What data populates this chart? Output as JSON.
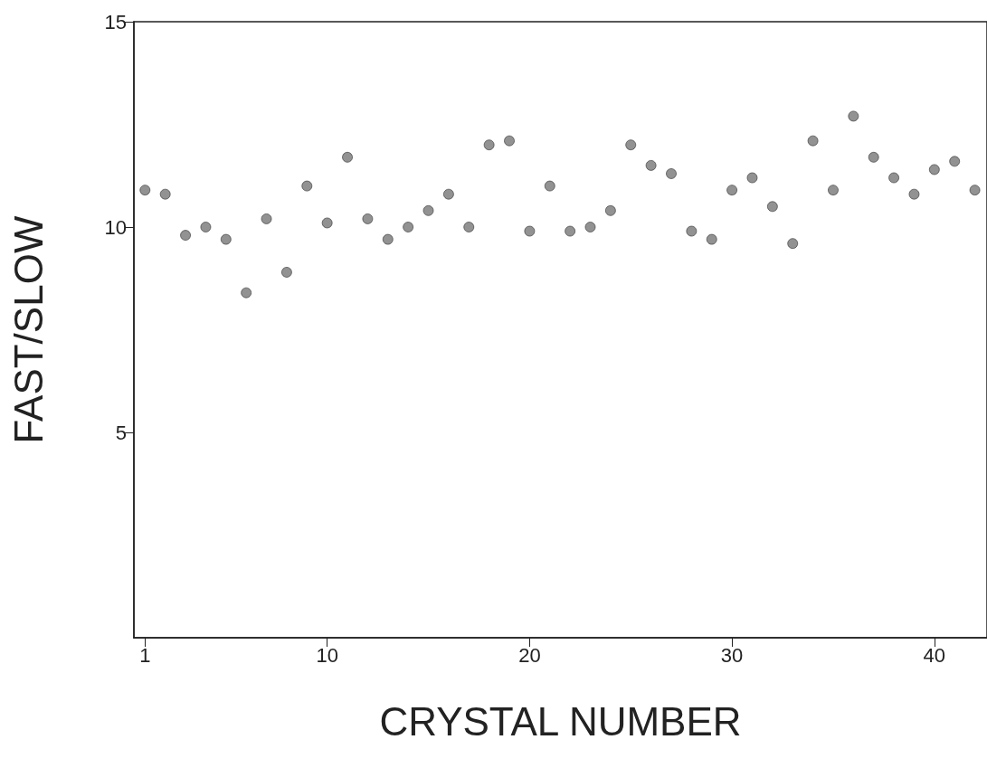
{
  "chart_data": {
    "type": "scatter",
    "xlabel": "CRYSTAL NUMBER",
    "ylabel": "FAST/SLOW",
    "x": [
      1,
      2,
      3,
      4,
      5,
      6,
      7,
      8,
      9,
      10,
      11,
      12,
      13,
      14,
      15,
      16,
      17,
      18,
      19,
      20,
      21,
      22,
      23,
      24,
      25,
      26,
      27,
      28,
      29,
      30,
      31,
      32,
      33,
      34,
      35,
      36,
      37,
      38,
      39,
      40,
      41,
      42
    ],
    "series": [
      {
        "color": "#777777",
        "values": [
          10.9,
          10.8,
          9.8,
          10.0,
          9.7,
          8.4,
          10.2,
          8.9,
          11.0,
          10.1,
          11.7,
          10.2,
          9.7,
          10.0,
          10.4,
          10.8,
          10.0,
          12.0,
          12.1,
          9.9,
          11.0,
          9.9,
          10.0,
          10.4,
          12.0,
          11.5,
          11.3,
          9.9,
          9.7,
          10.9,
          11.2,
          10.5,
          9.6,
          12.1,
          10.9,
          12.7,
          11.7,
          11.2,
          10.8,
          11.4,
          11.6,
          10.9
        ]
      }
    ],
    "xlim": [
      0.45,
      42.6
    ],
    "xticks": [
      1,
      10,
      20,
      30,
      40
    ],
    "ylim": [
      0,
      15
    ],
    "yticks": [
      5,
      10,
      15
    ],
    "marker": "circle",
    "grid": false
  }
}
